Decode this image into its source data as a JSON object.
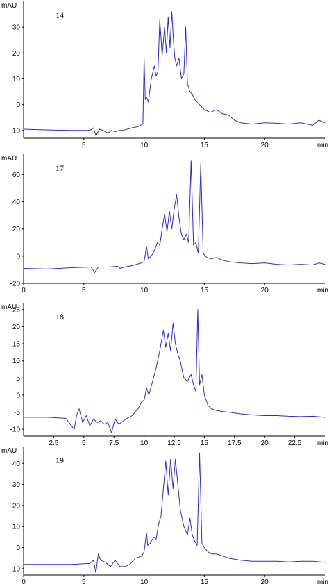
{
  "chart_data": [
    {
      "type": "line",
      "panel_label": "14",
      "ylabel": "mAU",
      "xlabel": "min",
      "xlim": [
        0,
        25
      ],
      "ylim": [
        -13,
        40
      ],
      "xticks": [
        5,
        10,
        15,
        20
      ],
      "xtick_labels": [
        "5",
        "10",
        "15",
        "20"
      ],
      "yticks": [
        -10,
        0,
        10,
        20,
        30
      ],
      "ytick_labels": [
        "-10",
        "0",
        "10",
        "20",
        "30"
      ],
      "grid": false,
      "series_color": "#2b2bc8",
      "x": [
        0,
        2,
        4,
        5.5,
        5.8,
        6.0,
        6.3,
        6.6,
        7.0,
        7.3,
        7.6,
        7.9,
        8.2,
        8.6,
        9.0,
        9.5,
        9.9,
        10.0,
        10.1,
        10.2,
        10.35,
        10.6,
        10.85,
        11.0,
        11.15,
        11.3,
        11.5,
        11.7,
        11.85,
        12.0,
        12.15,
        12.3,
        12.45,
        12.55,
        12.7,
        12.9,
        13.1,
        13.3,
        13.45,
        13.6,
        13.8,
        14.0,
        14.2,
        14.6,
        15.0,
        15.5,
        16.0,
        16.5,
        17.0,
        17.5,
        18,
        19,
        20,
        21,
        22,
        23,
        24,
        24.5,
        25
      ],
      "y": [
        -9.5,
        -9.8,
        -10,
        -10,
        -9,
        -12,
        -9.5,
        -10,
        -11,
        -10,
        -10.5,
        -10,
        -10,
        -9.5,
        -9,
        -8.5,
        -7.5,
        18,
        2,
        3,
        1,
        10,
        15,
        11,
        13,
        33,
        19,
        30,
        20,
        34,
        22,
        36,
        24,
        18,
        15,
        18,
        10,
        12,
        30,
        8,
        5,
        4,
        2,
        0,
        -2,
        -3,
        -2,
        -3.5,
        -4,
        -6,
        -7,
        -7.5,
        -7,
        -7.2,
        -7.5,
        -7,
        -8,
        -6,
        -7
      ]
    },
    {
      "type": "line",
      "panel_label": "17",
      "ylabel": "mAU",
      "xlabel": "min",
      "xlim": [
        0,
        25
      ],
      "ylim": [
        -20,
        75
      ],
      "xticks": [
        0,
        5,
        10,
        15,
        20
      ],
      "xtick_labels": [
        "0",
        "5",
        "10",
        "15",
        "20"
      ],
      "yticks": [
        -20,
        0,
        20,
        40,
        60
      ],
      "ytick_labels": [
        "-20",
        "0",
        "20",
        "40",
        "60"
      ],
      "grid": false,
      "series_color": "#2b2bc8",
      "x": [
        0,
        2,
        4,
        5.6,
        5.9,
        6.2,
        7,
        7.8,
        8.0,
        8.4,
        9.0,
        9.8,
        10.0,
        10.2,
        10.35,
        10.6,
        10.9,
        11.1,
        11.3,
        11.5,
        11.7,
        11.9,
        12.1,
        12.3,
        12.5,
        12.7,
        12.9,
        13.1,
        13.3,
        13.5,
        13.7,
        13.9,
        14.1,
        14.3,
        14.5,
        14.7,
        14.9,
        15.2,
        15.6,
        16.0,
        16.5,
        17,
        18,
        19,
        20,
        21,
        22,
        23,
        24,
        24.5,
        25
      ],
      "y": [
        -9,
        -9.5,
        -8.5,
        -8,
        -12,
        -8,
        -8,
        -7.5,
        -9,
        -8,
        -7,
        -5,
        -4,
        7,
        -2,
        0,
        5,
        10,
        8,
        20,
        31,
        18,
        33,
        20,
        35,
        45,
        28,
        16,
        12,
        16,
        10,
        70,
        8,
        10,
        2,
        68,
        2,
        -1,
        -2,
        -1,
        -3,
        -4,
        -5,
        -5.5,
        -5,
        -6,
        -6.5,
        -6,
        -6.5,
        -5,
        -6
      ]
    },
    {
      "type": "line",
      "panel_label": "18",
      "ylabel": "mAU",
      "xlabel": "min",
      "xlim": [
        0,
        25
      ],
      "ylim": [
        -12,
        27
      ],
      "xticks": [
        2.5,
        5,
        7.5,
        10,
        12.5,
        15,
        17.5,
        20,
        22.5
      ],
      "xtick_labels": [
        "2.5",
        "5",
        "7.5",
        "10",
        "12.5",
        "15",
        "17.5",
        "20",
        "22.5"
      ],
      "yticks": [
        -10,
        -5,
        0,
        5,
        10,
        15,
        20,
        25
      ],
      "ytick_labels": [
        "-10",
        "-5",
        "0",
        "5",
        "10",
        "15",
        "20",
        "25"
      ],
      "grid": false,
      "series_color": "#2b2bc8",
      "x": [
        0,
        2,
        3.5,
        4.2,
        4.4,
        4.6,
        4.9,
        5.2,
        5.5,
        5.8,
        6.1,
        6.4,
        6.7,
        7.0,
        7.3,
        7.6,
        7.9,
        8.5,
        9.0,
        9.5,
        9.8,
        10.0,
        10.2,
        10.4,
        10.7,
        11.0,
        11.3,
        11.6,
        11.8,
        12.0,
        12.2,
        12.4,
        12.6,
        12.8,
        13.0,
        13.3,
        13.6,
        13.9,
        14.1,
        14.3,
        14.45,
        14.6,
        14.8,
        15.0,
        15.3,
        15.6,
        16,
        16.5,
        17,
        18,
        19,
        20,
        21,
        22,
        23,
        24,
        25
      ],
      "y": [
        -6.5,
        -6.5,
        -6.8,
        -10,
        -6,
        -4,
        -8,
        -6,
        -9,
        -7,
        -8,
        -7.5,
        -8.5,
        -8,
        -11,
        -7,
        -8.5,
        -7,
        -6,
        -4,
        -2,
        -1.5,
        2,
        0,
        4,
        8,
        13,
        19,
        14,
        18,
        13,
        21,
        15,
        12,
        10,
        5,
        4,
        6,
        3,
        1,
        25,
        3,
        6,
        0,
        -3,
        -4,
        -4.5,
        -4.8,
        -5,
        -5.5,
        -5.8,
        -6,
        -6,
        -6.2,
        -6.3,
        -6.2,
        -6.5
      ]
    },
    {
      "type": "line",
      "panel_label": "19",
      "ylabel": "mAU",
      "xlabel": "min",
      "xlim": [
        0,
        25
      ],
      "ylim": [
        -13,
        48
      ],
      "xticks": [
        0,
        5,
        10,
        15,
        20
      ],
      "xtick_labels": [
        "0",
        "5",
        "10",
        "15",
        "20"
      ],
      "yticks": [
        -10,
        0,
        10,
        20,
        30,
        40
      ],
      "ytick_labels": [
        "-10",
        "0",
        "10",
        "20",
        "30",
        "40"
      ],
      "grid": false,
      "series_color": "#2b2bc8",
      "x": [
        0,
        2,
        4,
        5.5,
        5.8,
        6.0,
        6.2,
        6.4,
        6.8,
        7.2,
        7.6,
        8.0,
        8.4,
        8.8,
        9.3,
        9.8,
        10.0,
        10.2,
        10.3,
        10.5,
        10.8,
        11.0,
        11.2,
        11.4,
        11.6,
        11.8,
        12.0,
        12.2,
        12.4,
        12.6,
        12.8,
        13.0,
        13.3,
        13.6,
        13.8,
        14.0,
        14.2,
        14.4,
        14.6,
        14.8,
        15.0,
        15.3,
        15.6,
        16.0,
        16.5,
        17,
        17.5,
        18,
        19,
        20,
        21,
        22,
        23,
        24,
        25
      ],
      "y": [
        -8,
        -8,
        -8,
        -7.5,
        -6,
        -12,
        -3,
        -6,
        -7,
        -9,
        -6,
        -9,
        -9,
        -8,
        -5,
        -4,
        -2,
        7,
        1,
        2,
        5,
        4,
        11,
        15,
        28,
        41,
        25,
        42,
        28,
        42,
        30,
        18,
        10,
        6,
        14,
        6,
        3,
        1,
        45,
        2,
        0,
        -2,
        -3,
        -3,
        -4,
        -5,
        -5.5,
        -6,
        -6.5,
        -6.5,
        -6.5,
        -6.8,
        -6.5,
        -6.5,
        -7
      ]
    }
  ]
}
